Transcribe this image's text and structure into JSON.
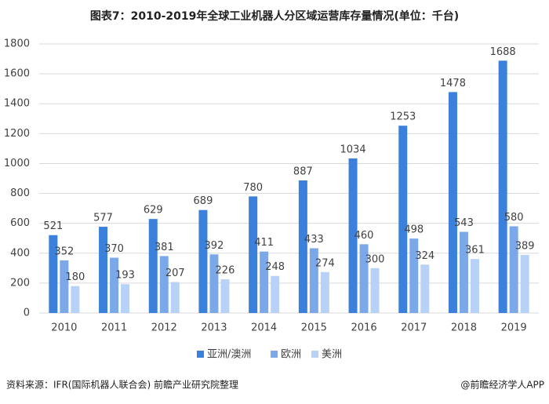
{
  "chart_data": {
    "type": "bar",
    "title": "图表7：2010-2019年全球工业机器人分区域运营库存量情况(单位：千台)",
    "categories": [
      "2010",
      "2011",
      "2012",
      "2013",
      "2014",
      "2015",
      "2016",
      "2017",
      "2018",
      "2019"
    ],
    "series": [
      {
        "name": "亚洲/澳洲",
        "color": "#3b80db",
        "values": [
          521,
          577,
          629,
          689,
          780,
          887,
          1034,
          1253,
          1478,
          1688
        ]
      },
      {
        "name": "欧洲",
        "color": "#7ba8e8",
        "values": [
          352,
          370,
          381,
          392,
          411,
          433,
          460,
          498,
          543,
          580
        ]
      },
      {
        "name": "美洲",
        "color": "#b7d2f6",
        "values": [
          180,
          193,
          207,
          226,
          248,
          274,
          300,
          324,
          361,
          389
        ]
      }
    ],
    "ylim": [
      0,
      1800
    ],
    "yticks": [
      0,
      200,
      400,
      600,
      800,
      1000,
      1200,
      1400,
      1600,
      1800
    ],
    "grid": true,
    "legend": "bottom",
    "source": "资料来源：IFR(国际机器人联合会) 前瞻产业研究院整理",
    "credit": "@前瞻经济学人APP"
  }
}
